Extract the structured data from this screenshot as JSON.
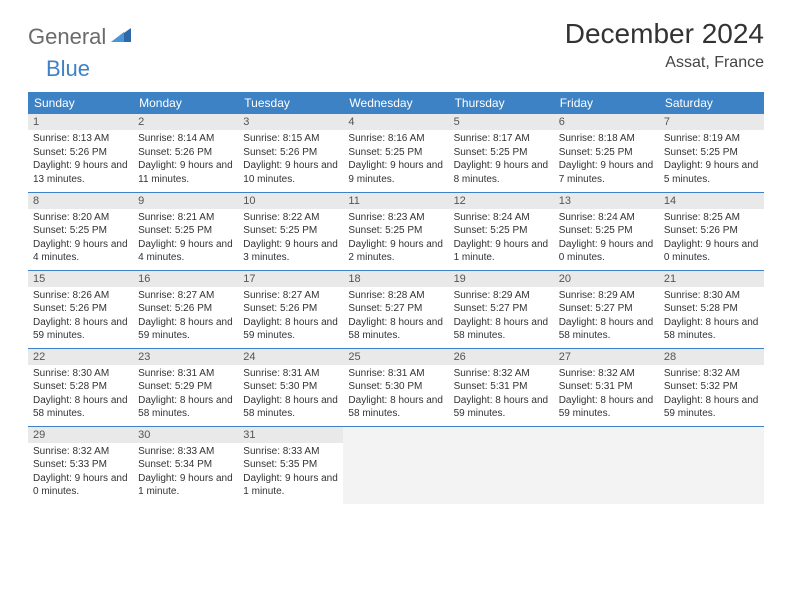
{
  "logo": {
    "word1": "General",
    "word2": "Blue"
  },
  "title": "December 2024",
  "location": "Assat, France",
  "colors": {
    "header_bg": "#3d82c4",
    "header_fg": "#ffffff",
    "daynum_bg": "#e9e9e9",
    "row_border": "#3d82c4",
    "empty_bg": "#f3f3f3",
    "logo_gray": "#6b6b6b",
    "logo_blue": "#3d82c4"
  },
  "weekdays": [
    "Sunday",
    "Monday",
    "Tuesday",
    "Wednesday",
    "Thursday",
    "Friday",
    "Saturday"
  ],
  "weeks": [
    [
      {
        "n": "1",
        "sr": "8:13 AM",
        "ss": "5:26 PM",
        "dl": "9 hours and 13 minutes."
      },
      {
        "n": "2",
        "sr": "8:14 AM",
        "ss": "5:26 PM",
        "dl": "9 hours and 11 minutes."
      },
      {
        "n": "3",
        "sr": "8:15 AM",
        "ss": "5:26 PM",
        "dl": "9 hours and 10 minutes."
      },
      {
        "n": "4",
        "sr": "8:16 AM",
        "ss": "5:25 PM",
        "dl": "9 hours and 9 minutes."
      },
      {
        "n": "5",
        "sr": "8:17 AM",
        "ss": "5:25 PM",
        "dl": "9 hours and 8 minutes."
      },
      {
        "n": "6",
        "sr": "8:18 AM",
        "ss": "5:25 PM",
        "dl": "9 hours and 7 minutes."
      },
      {
        "n": "7",
        "sr": "8:19 AM",
        "ss": "5:25 PM",
        "dl": "9 hours and 5 minutes."
      }
    ],
    [
      {
        "n": "8",
        "sr": "8:20 AM",
        "ss": "5:25 PM",
        "dl": "9 hours and 4 minutes."
      },
      {
        "n": "9",
        "sr": "8:21 AM",
        "ss": "5:25 PM",
        "dl": "9 hours and 4 minutes."
      },
      {
        "n": "10",
        "sr": "8:22 AM",
        "ss": "5:25 PM",
        "dl": "9 hours and 3 minutes."
      },
      {
        "n": "11",
        "sr": "8:23 AM",
        "ss": "5:25 PM",
        "dl": "9 hours and 2 minutes."
      },
      {
        "n": "12",
        "sr": "8:24 AM",
        "ss": "5:25 PM",
        "dl": "9 hours and 1 minute."
      },
      {
        "n": "13",
        "sr": "8:24 AM",
        "ss": "5:25 PM",
        "dl": "9 hours and 0 minutes."
      },
      {
        "n": "14",
        "sr": "8:25 AM",
        "ss": "5:26 PM",
        "dl": "9 hours and 0 minutes."
      }
    ],
    [
      {
        "n": "15",
        "sr": "8:26 AM",
        "ss": "5:26 PM",
        "dl": "8 hours and 59 minutes."
      },
      {
        "n": "16",
        "sr": "8:27 AM",
        "ss": "5:26 PM",
        "dl": "8 hours and 59 minutes."
      },
      {
        "n": "17",
        "sr": "8:27 AM",
        "ss": "5:26 PM",
        "dl": "8 hours and 59 minutes."
      },
      {
        "n": "18",
        "sr": "8:28 AM",
        "ss": "5:27 PM",
        "dl": "8 hours and 58 minutes."
      },
      {
        "n": "19",
        "sr": "8:29 AM",
        "ss": "5:27 PM",
        "dl": "8 hours and 58 minutes."
      },
      {
        "n": "20",
        "sr": "8:29 AM",
        "ss": "5:27 PM",
        "dl": "8 hours and 58 minutes."
      },
      {
        "n": "21",
        "sr": "8:30 AM",
        "ss": "5:28 PM",
        "dl": "8 hours and 58 minutes."
      }
    ],
    [
      {
        "n": "22",
        "sr": "8:30 AM",
        "ss": "5:28 PM",
        "dl": "8 hours and 58 minutes."
      },
      {
        "n": "23",
        "sr": "8:31 AM",
        "ss": "5:29 PM",
        "dl": "8 hours and 58 minutes."
      },
      {
        "n": "24",
        "sr": "8:31 AM",
        "ss": "5:30 PM",
        "dl": "8 hours and 58 minutes."
      },
      {
        "n": "25",
        "sr": "8:31 AM",
        "ss": "5:30 PM",
        "dl": "8 hours and 58 minutes."
      },
      {
        "n": "26",
        "sr": "8:32 AM",
        "ss": "5:31 PM",
        "dl": "8 hours and 59 minutes."
      },
      {
        "n": "27",
        "sr": "8:32 AM",
        "ss": "5:31 PM",
        "dl": "8 hours and 59 minutes."
      },
      {
        "n": "28",
        "sr": "8:32 AM",
        "ss": "5:32 PM",
        "dl": "8 hours and 59 minutes."
      }
    ],
    [
      {
        "n": "29",
        "sr": "8:32 AM",
        "ss": "5:33 PM",
        "dl": "9 hours and 0 minutes."
      },
      {
        "n": "30",
        "sr": "8:33 AM",
        "ss": "5:34 PM",
        "dl": "9 hours and 1 minute."
      },
      {
        "n": "31",
        "sr": "8:33 AM",
        "ss": "5:35 PM",
        "dl": "9 hours and 1 minute."
      },
      {
        "empty": true
      },
      {
        "empty": true
      },
      {
        "empty": true
      },
      {
        "empty": true
      }
    ]
  ],
  "labels": {
    "sunrise": "Sunrise: ",
    "sunset": "Sunset: ",
    "daylight": "Daylight: "
  }
}
